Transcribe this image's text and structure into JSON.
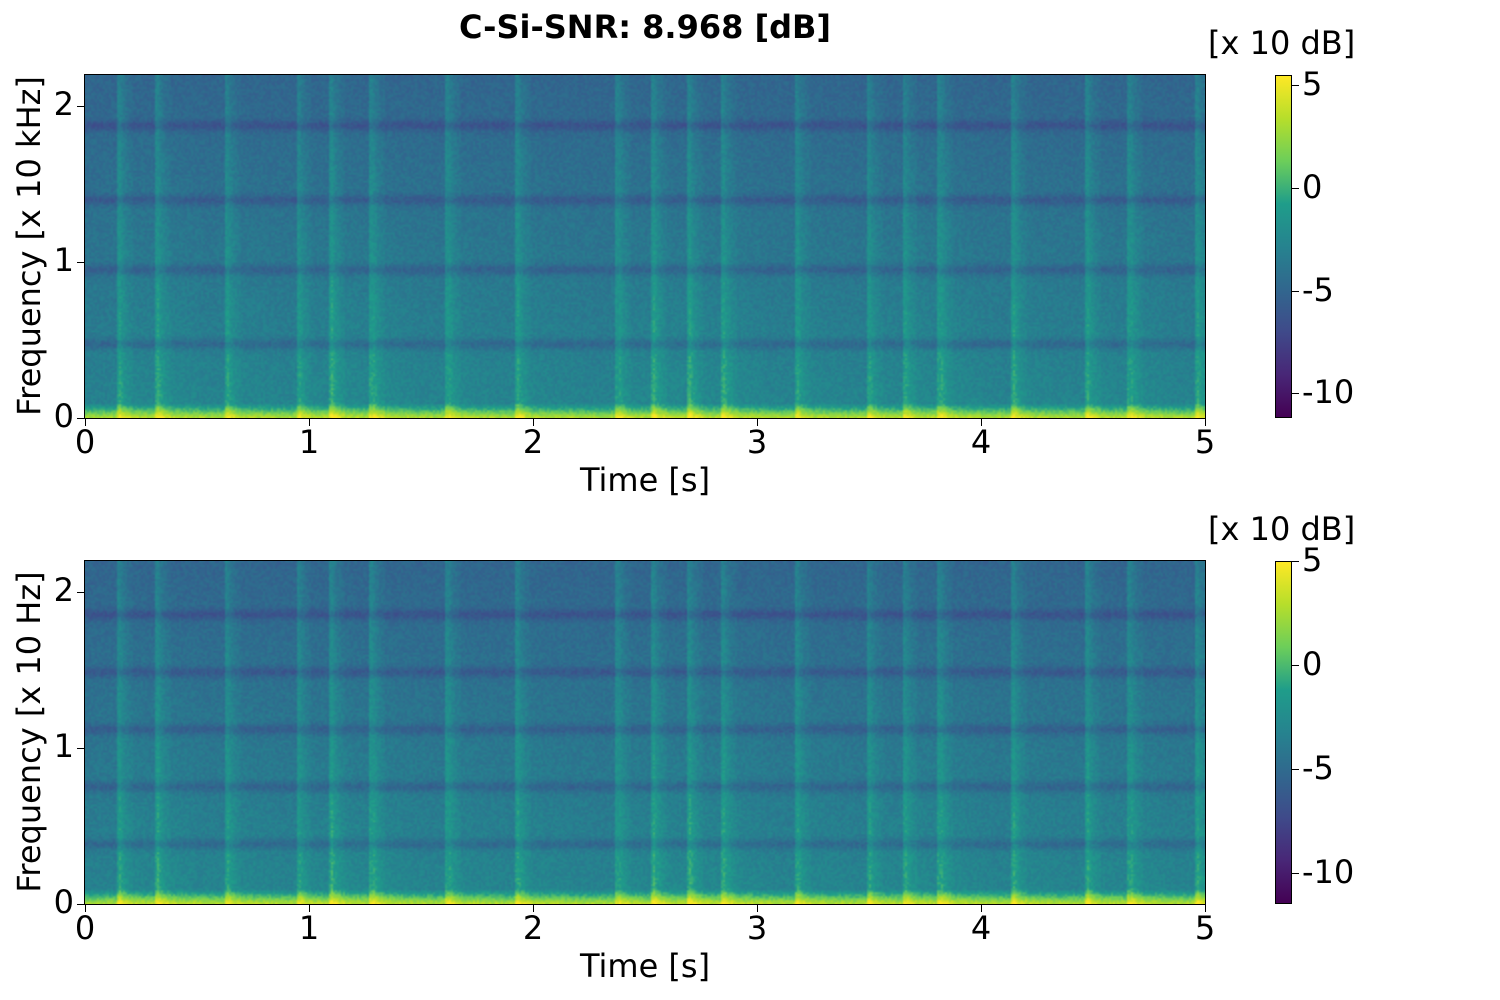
{
  "title": "C-Si-SNR: 8.968 [dB]",
  "chart_data": [
    {
      "type": "heatmap",
      "subtype": "spectrogram",
      "xlabel": "Time [s]",
      "ylabel": "Frequency [x 10 kHz]",
      "xlim": [
        0,
        5
      ],
      "ylim": [
        0,
        2.2
      ],
      "xticks": [
        0,
        1,
        2,
        3,
        4,
        5
      ],
      "xtick_labels": [
        "0",
        "1",
        "2",
        "3",
        "4",
        "5"
      ],
      "yticks": [
        0,
        1,
        2
      ],
      "ytick_labels": [
        "0",
        "1",
        "2"
      ],
      "colormap": "viridis",
      "colorbar": {
        "unit": "[x 10 dB]",
        "range": [
          -11.2,
          5.5
        ],
        "ticks": [
          5,
          0,
          -5,
          -10
        ],
        "tick_labels": [
          "5",
          "0",
          "-5",
          "-10"
        ]
      },
      "dark_bands_freq": [
        0.47,
        0.95,
        1.4,
        1.88
      ],
      "onset_times": [
        0.15,
        0.32,
        0.63,
        0.95,
        1.1,
        1.28,
        1.62,
        1.93,
        2.38,
        2.54,
        2.7,
        2.85,
        3.18,
        3.5,
        3.66,
        3.82,
        4.15,
        4.48,
        4.67,
        4.97
      ]
    },
    {
      "type": "heatmap",
      "subtype": "spectrogram",
      "xlabel": "Time [s]",
      "ylabel": "Frequency [x 10 Hz]",
      "xlim": [
        0,
        5
      ],
      "ylim": [
        0,
        2.2
      ],
      "xticks": [
        0,
        1,
        2,
        3,
        4,
        5
      ],
      "xtick_labels": [
        "0",
        "1",
        "2",
        "3",
        "4",
        "5"
      ],
      "yticks": [
        0,
        1,
        2
      ],
      "ytick_labels": [
        "0",
        "1",
        "2"
      ],
      "colormap": "viridis",
      "colorbar": {
        "unit": "[x 10 dB]",
        "range": [
          -11.5,
          5.0
        ],
        "ticks": [
          5,
          0,
          -5,
          -10
        ],
        "tick_labels": [
          "5",
          "0",
          "-5",
          "-10"
        ]
      },
      "dark_bands_freq": [
        0.38,
        0.75,
        1.12,
        1.49,
        1.86
      ],
      "onset_times": [
        0.15,
        0.32,
        0.63,
        0.95,
        1.1,
        1.28,
        1.62,
        1.93,
        2.38,
        2.54,
        2.7,
        2.85,
        3.18,
        3.5,
        3.66,
        3.82,
        4.15,
        4.48,
        4.67,
        4.97
      ]
    }
  ]
}
